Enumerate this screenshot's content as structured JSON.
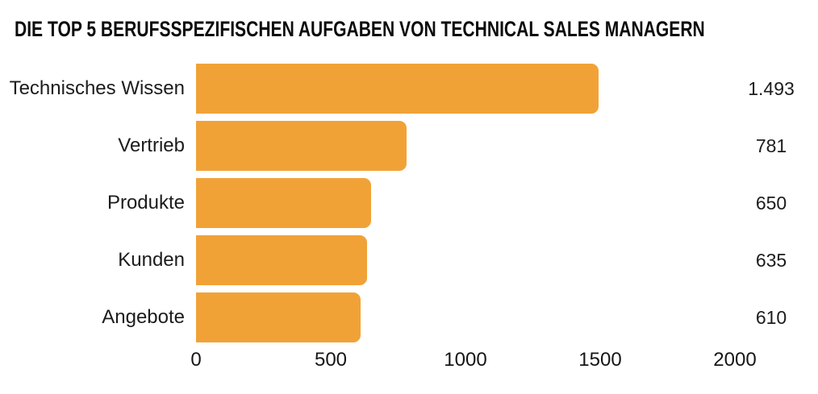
{
  "chart_data": {
    "type": "bar",
    "orientation": "horizontal",
    "title": "DIE TOP 5 BERUFSSPEZIFISCHEN AUFGABEN VON TECHNICAL SALES MANAGERN",
    "categories": [
      "Technisches Wissen",
      "Vertrieb",
      "Produkte",
      "Kunden",
      "Angebote"
    ],
    "values": [
      1493,
      781,
      650,
      635,
      610
    ],
    "value_labels": [
      "1.493",
      "781",
      "650",
      "635",
      "610"
    ],
    "xlim": [
      0,
      2000
    ],
    "xticks": [
      0,
      500,
      1000,
      1500,
      2000
    ],
    "xtick_labels": [
      "0",
      "500",
      "1000",
      "1500",
      "2000"
    ],
    "xlabel": "",
    "ylabel": "",
    "grid": false,
    "legend": "none",
    "bar_color": "#F1A237",
    "background_color": "#FFFFFF",
    "text_color": "#1C1C1C"
  }
}
